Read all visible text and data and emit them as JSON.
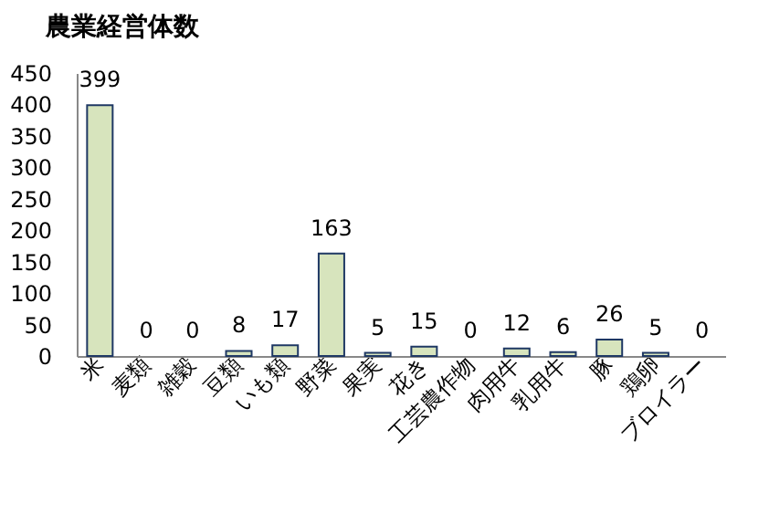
{
  "chart_data": {
    "type": "bar",
    "title": "農業経営体数",
    "categories": [
      "米",
      "麦類",
      "雑穀",
      "豆類",
      "いも類",
      "野菜",
      "果実",
      "花き",
      "工芸農作物",
      "肉用牛",
      "乳用牛",
      "豚",
      "鶏卵",
      "ブロイラー"
    ],
    "values": [
      399,
      0,
      0,
      8,
      17,
      163,
      5,
      15,
      0,
      12,
      6,
      26,
      5,
      0
    ],
    "color": "#d7e4bd",
    "ylim": [
      0,
      450
    ],
    "yticks": [
      0,
      50,
      100,
      150,
      200,
      250,
      300,
      350,
      400,
      450
    ],
    "grid": false,
    "data_labels": true
  }
}
